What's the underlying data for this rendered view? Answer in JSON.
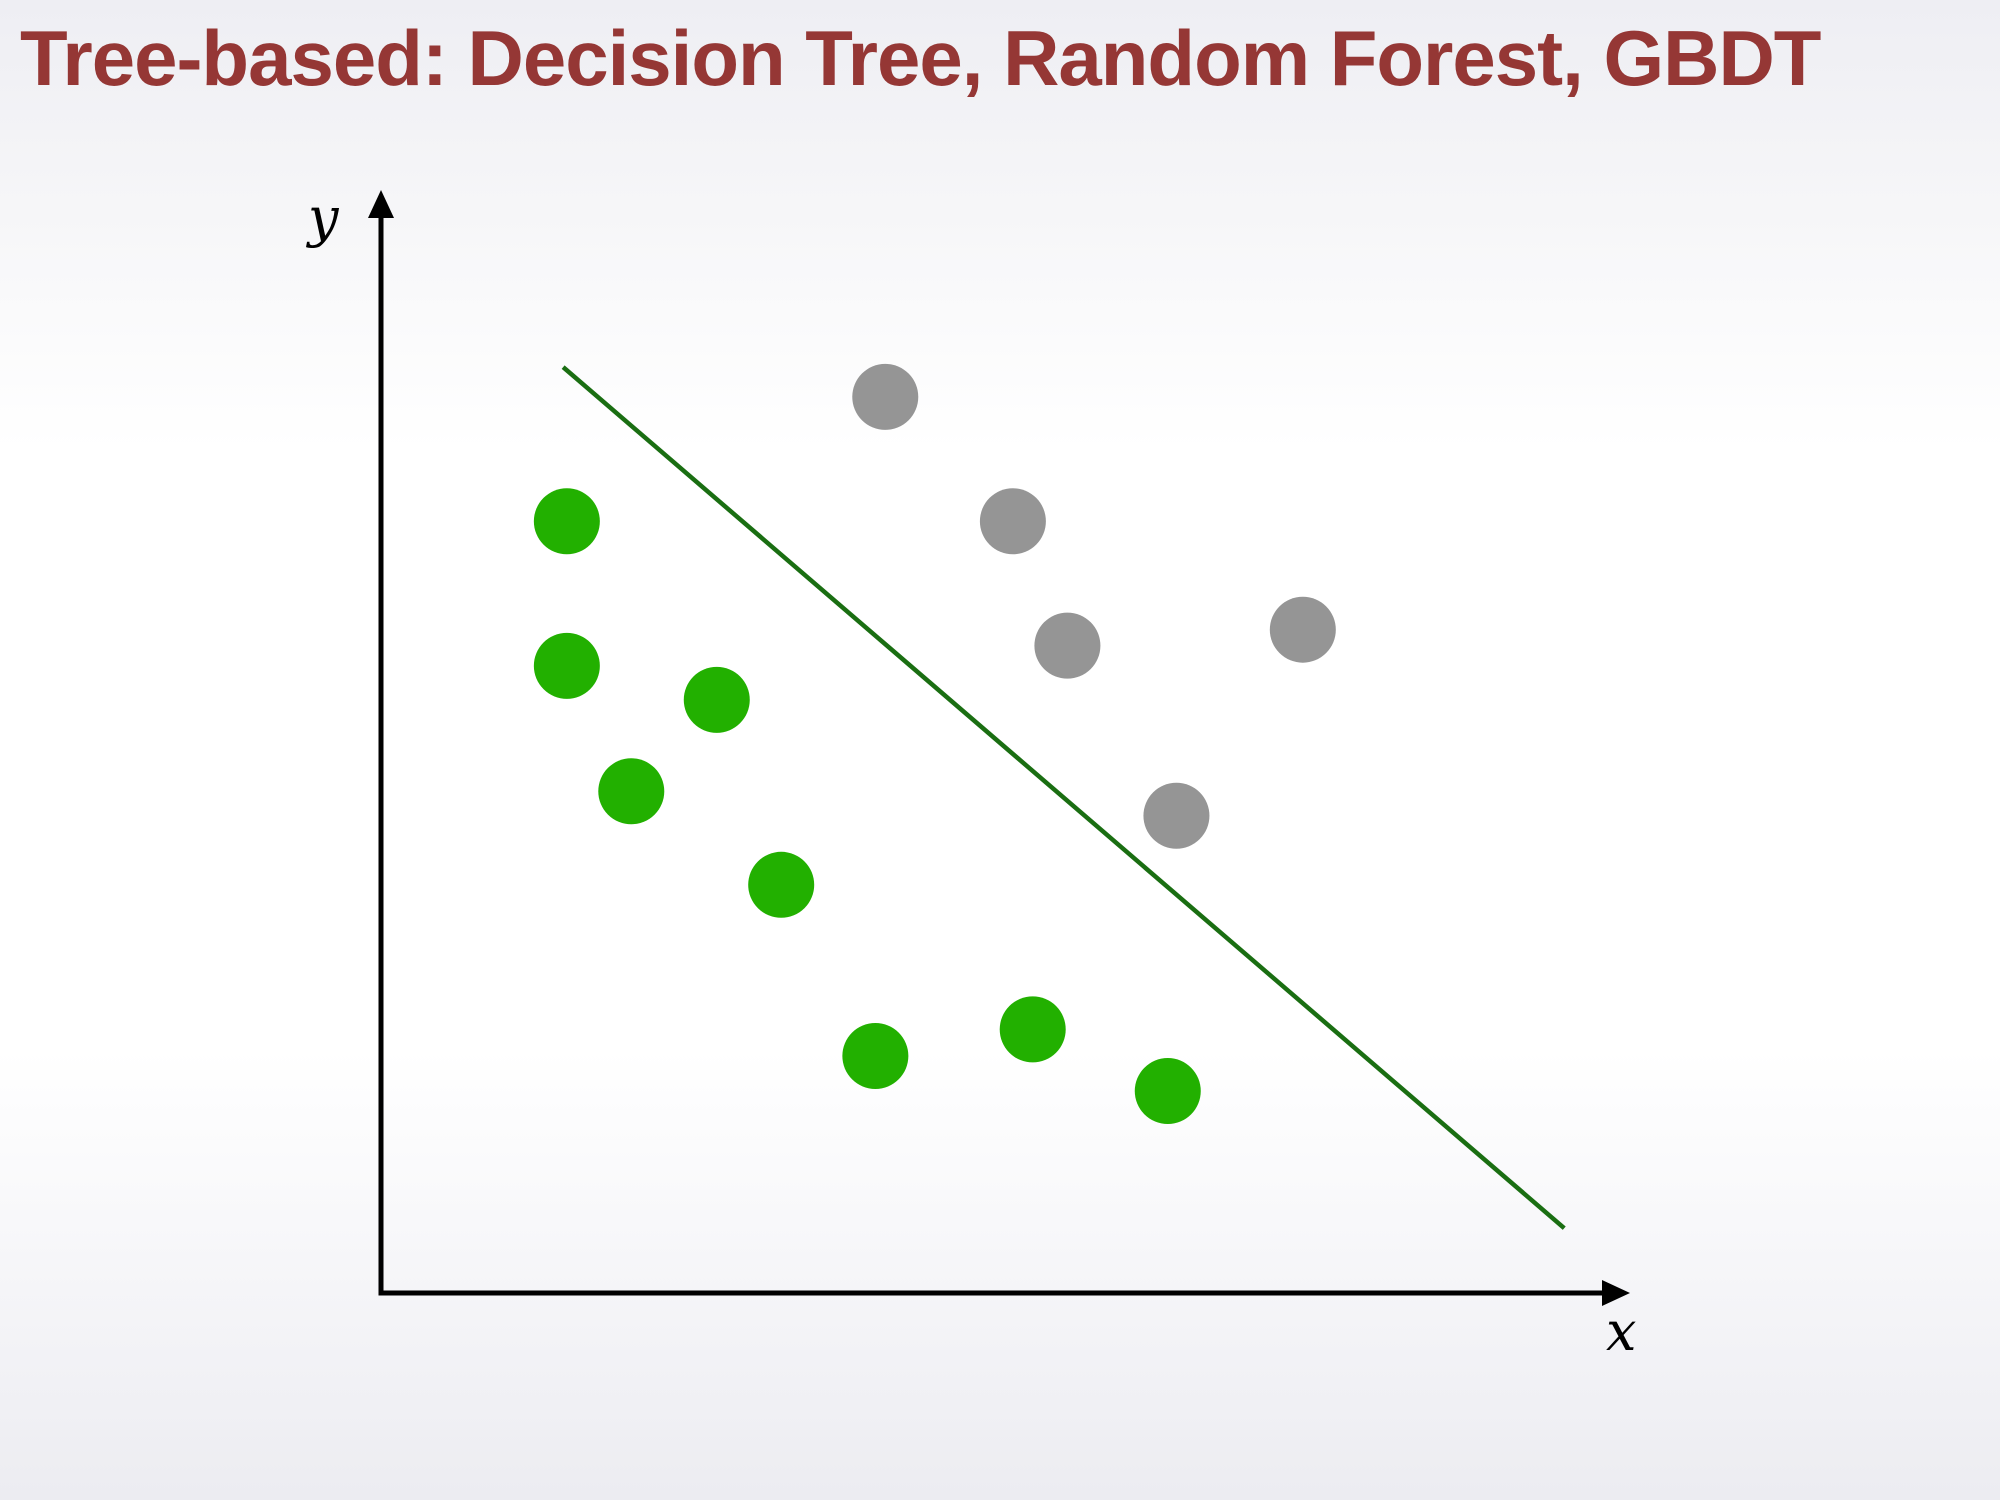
{
  "title": "Tree-based: Decision Tree, Random Forest, GBDT",
  "axes": {
    "x_label": "x",
    "y_label": "y"
  },
  "colors": {
    "title": "#953735",
    "class_a": "#22b000",
    "class_b": "#959595",
    "boundary": "#1a6e12",
    "axis": "#000000"
  },
  "chart_data": {
    "type": "scatter",
    "xlabel": "x",
    "ylabel": "y",
    "grid": false,
    "xlim": [
      0,
      100
    ],
    "ylim": [
      0,
      100
    ],
    "series": [
      {
        "color": "#22b000",
        "points": [
          [
            15.0,
            72.6
          ],
          [
            15.0,
            59.0
          ],
          [
            20.2,
            47.2
          ],
          [
            27.1,
            55.8
          ],
          [
            32.3,
            38.4
          ],
          [
            39.9,
            22.3
          ],
          [
            52.6,
            24.8
          ],
          [
            63.5,
            19.0
          ]
        ]
      },
      {
        "color": "#959595",
        "points": [
          [
            40.7,
            84.3
          ],
          [
            51.0,
            72.6
          ],
          [
            55.4,
            60.9
          ],
          [
            74.4,
            62.4
          ],
          [
            64.2,
            44.9
          ]
        ]
      }
    ],
    "boundary_line": {
      "from": [
        14.7,
        87.1
      ],
      "to": [
        95.5,
        6.1
      ]
    }
  }
}
